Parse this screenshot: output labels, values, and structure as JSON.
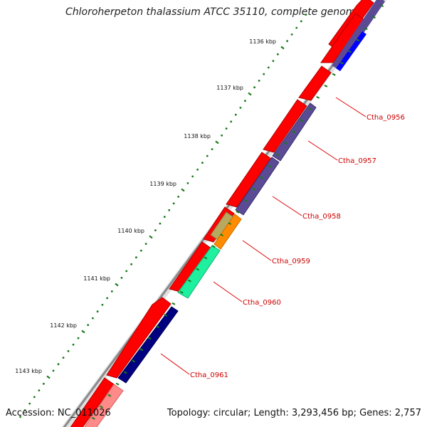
{
  "title": "Chloroherpeton thalassium ATCC 35110, complete genome",
  "accession": "Accession: NC_011026",
  "summary": "Topology: circular; Length: 3,293,456 bp; Genes: 2,757",
  "colors": {
    "backbone": "#8c8c8c",
    "forward_cds": "#ff0000",
    "reverse_cds": "#5a4b94",
    "tick": "#1a7a1a",
    "label": "#cc0000"
  },
  "ticks": [
    {
      "kbp": 1136,
      "label": "1136 kbp"
    },
    {
      "kbp": 1137,
      "label": "1137 kbp"
    },
    {
      "kbp": 1138,
      "label": "1138 kbp"
    },
    {
      "kbp": 1139,
      "label": "1139 kbp"
    },
    {
      "kbp": 1140,
      "label": "1140 kbp"
    },
    {
      "kbp": 1141,
      "label": "1141 kbp"
    },
    {
      "kbp": 1142,
      "label": "1142 kbp"
    },
    {
      "kbp": 1143,
      "label": "1143 kbp"
    }
  ],
  "genes": [
    {
      "name": "Ctha_0956",
      "color": "#5a4b94"
    },
    {
      "name": "Ctha_0957",
      "color": "#5a4b94"
    },
    {
      "name": "Ctha_0958",
      "color": "#5a4b94"
    },
    {
      "name": "Ctha_0959",
      "color": "#ff8c00"
    },
    {
      "name": "Ctha_0960",
      "color": "#1ef0a0"
    },
    {
      "name": "Ctha_0961",
      "color": "#000080"
    }
  ]
}
